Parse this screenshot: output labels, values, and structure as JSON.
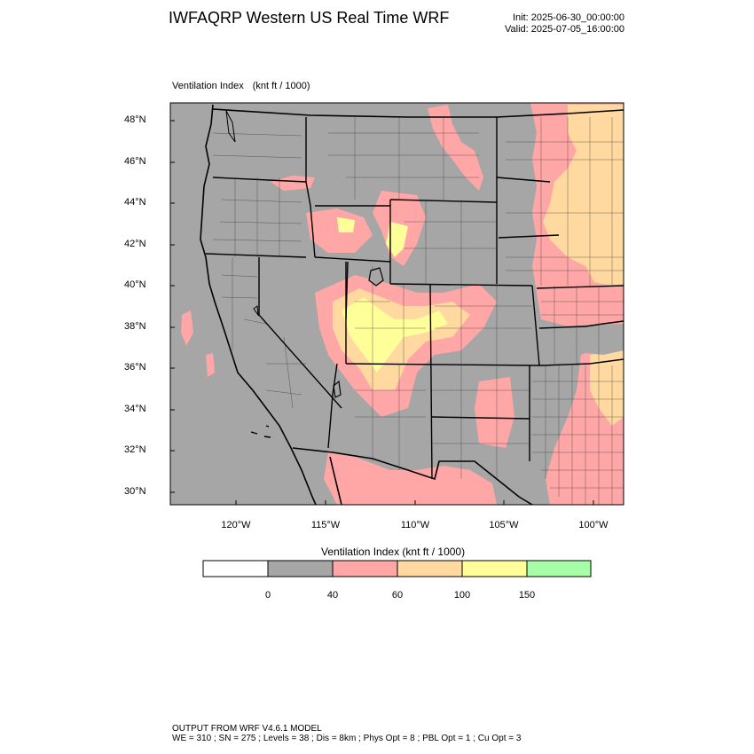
{
  "header": {
    "title": "IWFAQRP Western US Real Time WRF",
    "init": "Init: 2025-06-30_00:00:00",
    "valid": "Valid: 2025-07-05_16:00:00"
  },
  "field": {
    "name": "Ventilation Index",
    "units": "(knt ft / 1000)"
  },
  "map": {
    "lat_labels": [
      "48°N",
      "46°N",
      "44°N",
      "42°N",
      "40°N",
      "38°N",
      "36°N",
      "34°N",
      "32°N",
      "30°N"
    ],
    "lon_labels": [
      "120°W",
      "115°W",
      "110°W",
      "105°W",
      "100°W"
    ],
    "colors": {
      "land": "#a6a6a6",
      "ocean_gray": "#a9a9a9",
      "range_40_60": "#ffa6a6",
      "range_60_100": "#ffd9a0",
      "range_100_150": "#ffff99",
      "range_150_plus": "#a6ffa6",
      "boundary": "#000000"
    }
  },
  "colorbar": {
    "title": "Ventilation Index   (knt ft / 1000)",
    "labels": [
      "0",
      "40",
      "60",
      "100",
      "150"
    ],
    "colors": [
      "#ffffff",
      "#a6a6a6",
      "#ffa6a6",
      "#ffd9a0",
      "#ffff99",
      "#a6ffa6"
    ]
  },
  "footer": {
    "line1": "OUTPUT FROM WRF V4.6.1 MODEL",
    "line2": "WE = 310 ; SN = 275 ; Levels = 38 ; Dis = 8km ; Phys Opt = 8 ; PBL Opt = 1 ; Cu Opt = 3"
  }
}
